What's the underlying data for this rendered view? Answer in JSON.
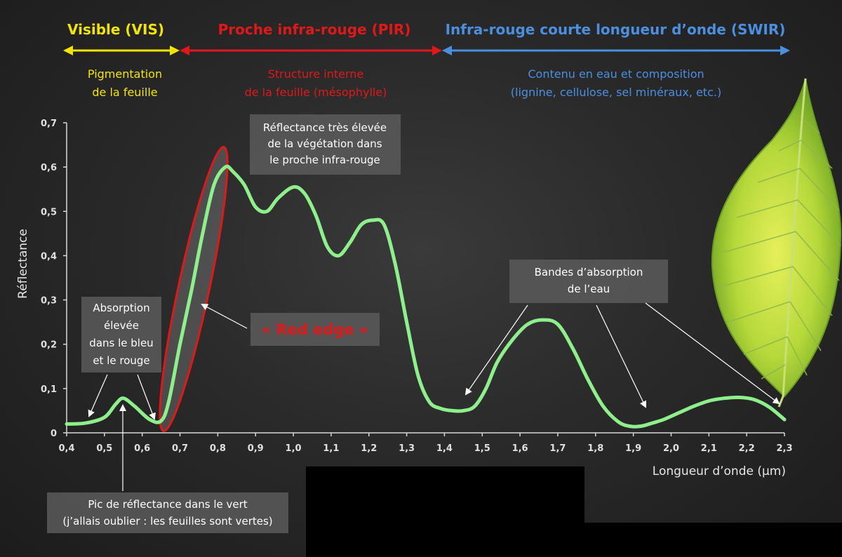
{
  "regions": {
    "vis": {
      "title": "Visible (VIS)",
      "desc_lines": [
        "Pigmentation",
        "de la feuille"
      ],
      "color": "#f2e600"
    },
    "pir": {
      "title": "Proche infra-rouge (PIR)",
      "desc_lines": [
        "Structure interne",
        "de la feuille (mésophylle)"
      ],
      "color": "#e01818"
    },
    "swir": {
      "title": "Infra-rouge courte longueur d’onde (SWIR)",
      "desc_lines": [
        "Contenu en eau et composition",
        "(lignine, cellulose, sel minéraux, etc.)"
      ],
      "color": "#4a8fe0"
    }
  },
  "annotations": {
    "nir_peak": [
      "Réflectance très élevée",
      "de la végétation dans",
      "le proche infra-rouge"
    ],
    "absorption_bands": [
      "Bandes d’absorption",
      "de l’eau"
    ],
    "blue_red_absorption": [
      "Absorption",
      "élevée",
      "dans le bleu",
      "et le rouge"
    ],
    "red_edge": "« Red edge »",
    "green_peak": [
      "Pic de réflectance dans le vert",
      "(j’allais oublier : les feuilles sont vertes)"
    ]
  },
  "chart_data": {
    "type": "line",
    "title": "",
    "xlabel": "Longueur d’onde (µm)",
    "ylabel": "Réflectance",
    "xlim": [
      0.4,
      2.3
    ],
    "ylim": [
      0,
      0.7
    ],
    "x_ticks": [
      "0,4",
      "0,5",
      "0,6",
      "0,7",
      "0,8",
      "0,9",
      "1,0",
      "1,1",
      "1,2",
      "1,3",
      "1,4",
      "1,5",
      "1,6",
      "1,7",
      "1,8",
      "1,9",
      "2,0",
      "2,1",
      "2,2",
      "2,3"
    ],
    "y_ticks": [
      "0",
      "0,1",
      "0,2",
      "0,3",
      "0,4",
      "0,5",
      "0,6",
      "0,7"
    ],
    "grid": false,
    "line_color": "#8ef08a",
    "series": [
      {
        "x": [
          0.4,
          0.45,
          0.5,
          0.53,
          0.55,
          0.58,
          0.62,
          0.65,
          0.67,
          0.7,
          0.73,
          0.76,
          0.79,
          0.82,
          0.84,
          0.87,
          0.9,
          0.93,
          0.96,
          1.0,
          1.03,
          1.06,
          1.09,
          1.12,
          1.15,
          1.18,
          1.21,
          1.24,
          1.27,
          1.3,
          1.33,
          1.36,
          1.39,
          1.42,
          1.45,
          1.48,
          1.51,
          1.54,
          1.58,
          1.62,
          1.66,
          1.7,
          1.74,
          1.78,
          1.82,
          1.86,
          1.89,
          1.92,
          1.95,
          1.98,
          2.02,
          2.06,
          2.1,
          2.14,
          2.18,
          2.22,
          2.26,
          2.3
        ],
        "y": [
          0.02,
          0.022,
          0.035,
          0.065,
          0.078,
          0.06,
          0.03,
          0.027,
          0.07,
          0.2,
          0.32,
          0.45,
          0.56,
          0.6,
          0.59,
          0.56,
          0.51,
          0.5,
          0.53,
          0.555,
          0.54,
          0.49,
          0.42,
          0.4,
          0.43,
          0.47,
          0.48,
          0.47,
          0.38,
          0.25,
          0.13,
          0.07,
          0.055,
          0.05,
          0.05,
          0.06,
          0.1,
          0.16,
          0.21,
          0.245,
          0.255,
          0.245,
          0.19,
          0.12,
          0.06,
          0.025,
          0.015,
          0.015,
          0.022,
          0.03,
          0.045,
          0.06,
          0.072,
          0.078,
          0.08,
          0.075,
          0.058,
          0.03
        ]
      }
    ]
  }
}
